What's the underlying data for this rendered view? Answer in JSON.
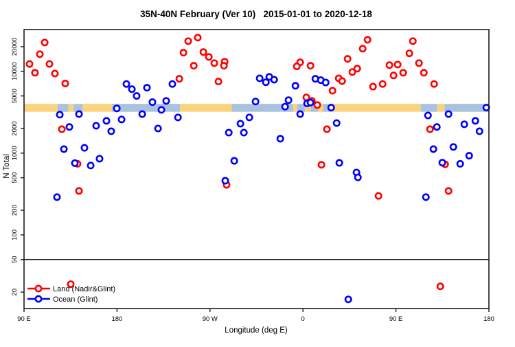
{
  "title": "35N-40N February (Ver 10)   2015-01-01 to 2020-12-18",
  "colors": {
    "land_series": "#ff0000",
    "ocean_series": "#0000ff",
    "land_band": "#fad37c",
    "ocean_band": "#a9c2de",
    "axis": "#1a1a1a",
    "point_fill": "#ffffff"
  },
  "chart_data": {
    "type": "scatter",
    "title": "35N-40N February (Ver 10)   2015-01-01 to 2020-12-18",
    "xlabel": "Longitude (deg E)",
    "ylabel": "N Total",
    "x_axis": {
      "range": [
        90,
        540
      ],
      "ticks": [
        90,
        180,
        270,
        360,
        450,
        540
      ],
      "labels": [
        "90 E",
        "180",
        "90 W",
        "0",
        "90 E",
        "180"
      ],
      "note": "longitude axis wraps eastward from 90E through 180, 90W, 0, 90E to 180"
    },
    "y_axis": {
      "scale": "log",
      "range": [
        12.6,
        32400
      ],
      "ticks": [
        20,
        50,
        100,
        200,
        500,
        1000,
        2000,
        5000,
        10000,
        20000
      ],
      "labels": [
        "20",
        "50",
        "100",
        "200",
        "500",
        "1000",
        "2000",
        "5000",
        "10000",
        "20000"
      ]
    },
    "grid": false,
    "reference_line": {
      "value": 50
    },
    "surface_band": {
      "value_range": [
        3200,
        4000
      ],
      "segments": [
        {
          "from": 90,
          "to": 122.5,
          "surface": "land"
        },
        {
          "from": 122.5,
          "to": 133,
          "surface": "ocean"
        },
        {
          "from": 133,
          "to": 138,
          "surface": "land"
        },
        {
          "from": 138,
          "to": 146.5,
          "surface": "ocean"
        },
        {
          "from": 146.5,
          "to": 175,
          "surface": "land"
        },
        {
          "from": 175,
          "to": 241,
          "surface": "ocean"
        },
        {
          "from": 241,
          "to": 291,
          "surface": "land"
        },
        {
          "from": 291,
          "to": 350.5,
          "surface": "ocean"
        },
        {
          "from": 350.5,
          "to": 354.5,
          "surface": "land"
        },
        {
          "from": 354.5,
          "to": 362,
          "surface": "ocean"
        },
        {
          "from": 362,
          "to": 367.5,
          "surface": "land"
        },
        {
          "from": 367.5,
          "to": 374.5,
          "surface": "ocean"
        },
        {
          "from": 374.5,
          "to": 379.5,
          "surface": "land"
        },
        {
          "from": 379.5,
          "to": 388.5,
          "surface": "ocean"
        },
        {
          "from": 388.5,
          "to": 474,
          "surface": "land"
        },
        {
          "from": 474,
          "to": 490,
          "surface": "ocean"
        },
        {
          "from": 490,
          "to": 497,
          "surface": "land"
        },
        {
          "from": 497,
          "to": 540,
          "surface": "ocean"
        }
      ]
    },
    "legend": {
      "position": "bottom-left",
      "entries": [
        "Land (Nadir&Glint)",
        "Ocean (Glint)"
      ]
    },
    "series": [
      {
        "name": "Land (Nadir&Glint)",
        "color": "#ff0000",
        "points": [
          [
            110,
            22500
          ],
          [
            105.3,
            16200
          ],
          [
            95.3,
            12300
          ],
          [
            114.6,
            12300
          ],
          [
            100.6,
            9600
          ],
          [
            119.9,
            9400
          ],
          [
            129.9,
            7100
          ],
          [
            240.3,
            8100
          ],
          [
            126.6,
            1960
          ],
          [
            141.8,
            740
          ],
          [
            143.2,
            345
          ],
          [
            135.2,
            25
          ],
          [
            258.2,
            25800
          ],
          [
            248.9,
            23400
          ],
          [
            244.3,
            16900
          ],
          [
            263.6,
            17200
          ],
          [
            268.9,
            15000
          ],
          [
            254.3,
            11700
          ],
          [
            274.2,
            12600
          ],
          [
            284.2,
            13100
          ],
          [
            283.5,
            11700
          ],
          [
            278.2,
            7500
          ],
          [
            286.1,
            410
          ],
          [
            357.3,
            12900
          ],
          [
            354,
            11500
          ],
          [
            367.3,
            11700
          ],
          [
            363.3,
            4800
          ],
          [
            368.6,
            4350
          ],
          [
            373.9,
            3870
          ],
          [
            388.6,
            5800
          ],
          [
            383.2,
            1960
          ],
          [
            377.9,
            720
          ],
          [
            394.6,
            8200
          ],
          [
            397.9,
            7600
          ],
          [
            403.2,
            14200
          ],
          [
            407.8,
            9800
          ],
          [
            412.5,
            10800
          ],
          [
            417.8,
            18900
          ],
          [
            422.5,
            24300
          ],
          [
            427.8,
            6500
          ],
          [
            433.1,
            300
          ],
          [
            437.1,
            7000
          ],
          [
            443.7,
            11900
          ],
          [
            447.7,
            8900
          ],
          [
            451.7,
            12100
          ],
          [
            457,
            9600
          ],
          [
            463,
            16600
          ],
          [
            466.4,
            23400
          ],
          [
            472.3,
            12600
          ],
          [
            477,
            9600
          ],
          [
            483,
            1960
          ],
          [
            487,
            7000
          ],
          [
            493,
            23.5
          ],
          [
            497.6,
            730
          ],
          [
            500.9,
            345
          ]
        ]
      },
      {
        "name": "Ocean (Glint)",
        "color": "#0000ff",
        "points": [
          [
            121.9,
            290
          ],
          [
            124.6,
            2950
          ],
          [
            128.6,
            1120
          ],
          [
            133.9,
            2090
          ],
          [
            139.2,
            755
          ],
          [
            143.2,
            3000
          ],
          [
            148.5,
            1160
          ],
          [
            154.5,
            705
          ],
          [
            159.8,
            2160
          ],
          [
            163.1,
            855
          ],
          [
            169.8,
            2480
          ],
          [
            174.4,
            1850
          ],
          [
            179.8,
            3520
          ],
          [
            184.4,
            2580
          ],
          [
            189.1,
            7000
          ],
          [
            194.4,
            6050
          ],
          [
            199,
            5000
          ],
          [
            204.4,
            3000
          ],
          [
            209,
            6300
          ],
          [
            214.3,
            4200
          ],
          [
            219.7,
            2000
          ],
          [
            223,
            3380
          ],
          [
            227.6,
            4350
          ],
          [
            233.6,
            7000
          ],
          [
            239,
            2730
          ],
          [
            284.8,
            460
          ],
          [
            288.2,
            1780
          ],
          [
            293.5,
            805
          ],
          [
            299.5,
            2290
          ],
          [
            302.8,
            1780
          ],
          [
            308.1,
            2730
          ],
          [
            314.1,
            4270
          ],
          [
            318.1,
            8200
          ],
          [
            324.1,
            7350
          ],
          [
            327.4,
            8550
          ],
          [
            332.1,
            7900
          ],
          [
            338.1,
            1500
          ],
          [
            342.7,
            3700
          ],
          [
            346,
            4440
          ],
          [
            352.7,
            6650
          ],
          [
            357.3,
            3000
          ],
          [
            364,
            4050
          ],
          [
            367.3,
            4150
          ],
          [
            372,
            8100
          ],
          [
            377.3,
            7800
          ],
          [
            382,
            7300
          ],
          [
            387.3,
            3600
          ],
          [
            392.6,
            2330
          ],
          [
            395.2,
            760
          ],
          [
            403.9,
            16.3
          ],
          [
            411.8,
            580
          ],
          [
            413.2,
            505
          ],
          [
            479,
            290
          ],
          [
            481,
            2890
          ],
          [
            486.3,
            1120
          ],
          [
            489.6,
            2090
          ],
          [
            494.9,
            765
          ],
          [
            500.9,
            3000
          ],
          [
            505.6,
            1190
          ],
          [
            512.2,
            740
          ],
          [
            516.2,
            2250
          ],
          [
            520.9,
            930
          ],
          [
            526.9,
            2480
          ],
          [
            530.9,
            1850
          ],
          [
            537.5,
            3600
          ]
        ]
      }
    ]
  }
}
